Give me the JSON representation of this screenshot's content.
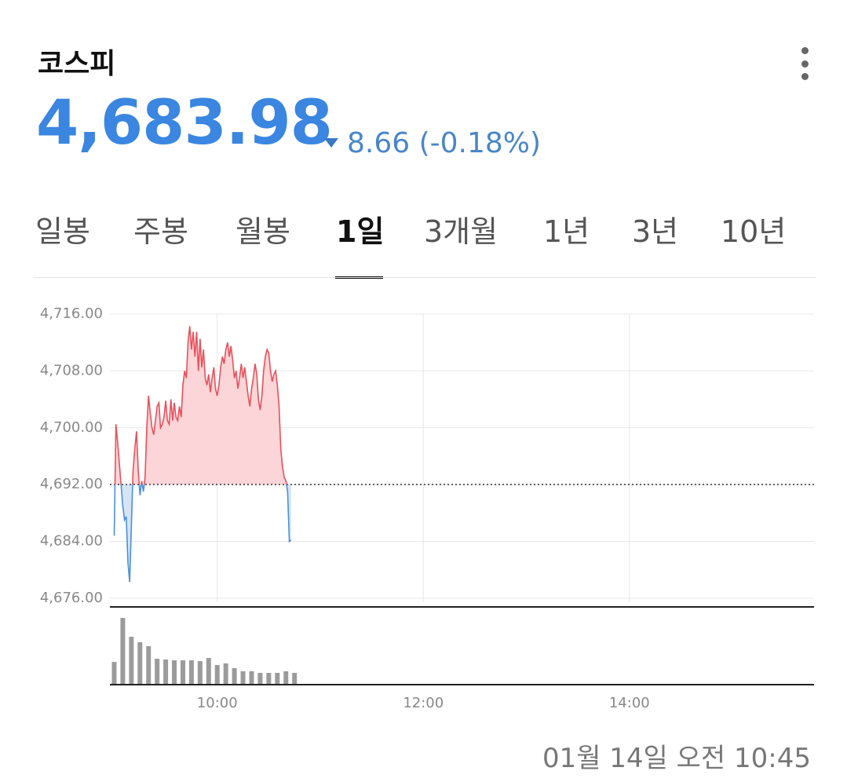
{
  "header": {
    "title": "코스피",
    "price": "4,683.98",
    "change": "8.66 (-0.18%)"
  },
  "tabs": {
    "items": [
      "일봉",
      "주봉",
      "월봉",
      "1일",
      "3개월",
      "1년",
      "3년",
      "10년"
    ],
    "active": 3
  },
  "chart_data": [
    {
      "type": "line",
      "up_color": "#e8505b",
      "up_fill": "#fbd5d8",
      "down_color": "#4a90d9",
      "down_fill": "#d5e5f6",
      "grid": true,
      "reference_line": 4692,
      "xlim": [
        537.5,
        947.5
      ],
      "xticks": [
        {
          "value": 600,
          "label": "10:00"
        },
        {
          "value": 720,
          "label": "12:00"
        },
        {
          "value": 840,
          "label": "14:00"
        }
      ],
      "ylim": [
        4675.5,
        4717.5
      ],
      "yticks": [
        {
          "value": 4676,
          "label": "4,676.00"
        },
        {
          "value": 4684,
          "label": "4,684.00"
        },
        {
          "value": 4692,
          "label": "4,692.00"
        },
        {
          "value": 4700,
          "label": "4,700.00"
        },
        {
          "value": 4708,
          "label": "4,708.00"
        },
        {
          "value": 4716,
          "label": "4,716.00"
        }
      ],
      "x": [
        540,
        541,
        542,
        543,
        544,
        545,
        546,
        547,
        548,
        549,
        550,
        551,
        552,
        553,
        554,
        555,
        556,
        557,
        558,
        559,
        560,
        561,
        562,
        563,
        564,
        565,
        566,
        567,
        568,
        569,
        570,
        571,
        572,
        573,
        574,
        575,
        576,
        577,
        578,
        579,
        580,
        581,
        582,
        583,
        584,
        585,
        586,
        587,
        588,
        589,
        590,
        591,
        592,
        593,
        594,
        595,
        596,
        597,
        598,
        599,
        600,
        601,
        602,
        603,
        604,
        605,
        606,
        607,
        608,
        609,
        610,
        611,
        612,
        613,
        614,
        615,
        616,
        617,
        618,
        619,
        620,
        621,
        622,
        623,
        624,
        625,
        626,
        627,
        628,
        629,
        630,
        631,
        632,
        633,
        634,
        635,
        636,
        637,
        638,
        639,
        640,
        641,
        642,
        643
      ],
      "values": [
        4684.8,
        4700.5,
        4698,
        4695,
        4692,
        4689,
        4687,
        4687.5,
        4681,
        4678.3,
        4686,
        4694,
        4697,
        4699.5,
        4694,
        4690.5,
        4692.5,
        4691,
        4693,
        4700,
        4704.5,
        4702,
        4700,
        4699,
        4701,
        4703,
        4703.5,
        4700,
        4700.5,
        4701.5,
        4703.8,
        4701,
        4700.5,
        4704,
        4701,
        4703.5,
        4701.5,
        4701,
        4703,
        4701.5,
        4706,
        4708,
        4707,
        4712,
        4714.3,
        4711,
        4713.5,
        4710,
        4713.5,
        4708,
        4712.5,
        4708.5,
        4711,
        4707,
        4706,
        4707.5,
        4705,
        4707,
        4708.5,
        4705.5,
        4704.5,
        4706,
        4708.5,
        4710,
        4709,
        4711,
        4712,
        4710,
        4711.5,
        4709.5,
        4707,
        4708,
        4705.5,
        4707,
        4709,
        4707,
        4708.5,
        4706.5,
        4704.5,
        4703,
        4705.5,
        4707,
        4709,
        4707.5,
        4704,
        4702.5,
        4704.5,
        4708,
        4710,
        4711,
        4710.5,
        4708,
        4706.5,
        4707.5,
        4708,
        4706,
        4703,
        4697,
        4694.5,
        4693,
        4692.5,
        4691,
        4684,
        4684.2
      ]
    },
    {
      "type": "bar",
      "color": "#9b9b9b",
      "xlim": [
        537.5,
        947.5
      ],
      "ylim": [
        0,
        100
      ],
      "x": [
        540,
        545,
        550,
        555,
        560,
        565,
        570,
        575,
        580,
        585,
        590,
        595,
        600,
        605,
        610,
        615,
        620,
        625,
        630,
        635,
        640,
        645
      ],
      "values": [
        29,
        85,
        61,
        54,
        49,
        33,
        32,
        31,
        31,
        31,
        30,
        34,
        25,
        27,
        21,
        17,
        17,
        15,
        15,
        15,
        17,
        15
      ]
    }
  ],
  "timestamp": "01월 14일 오전 10:45"
}
